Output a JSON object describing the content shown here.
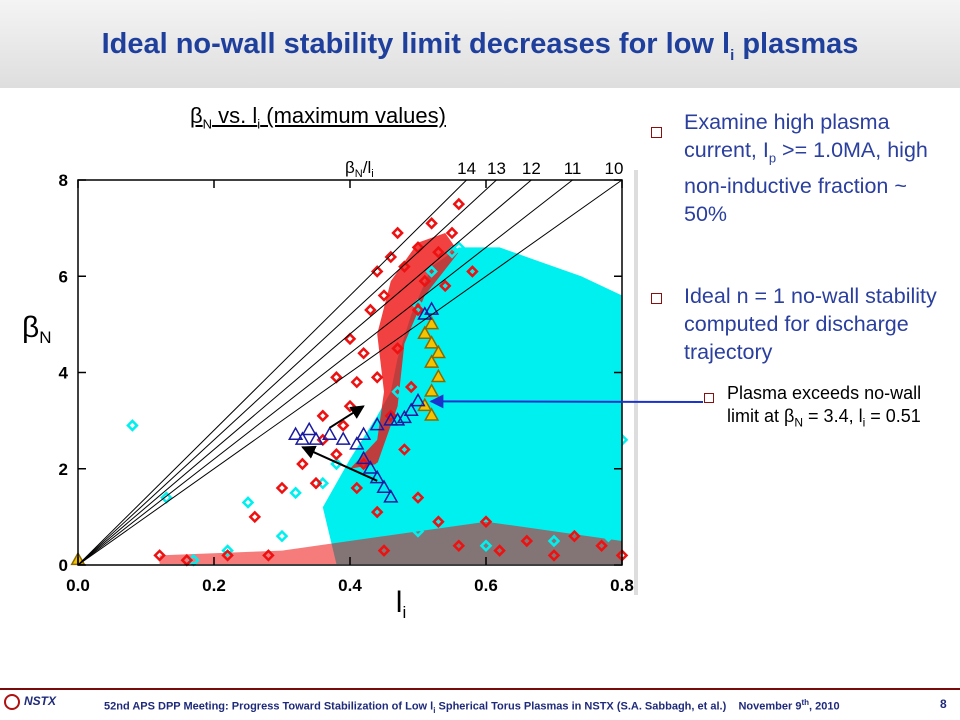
{
  "slide": {
    "title": "Ideal no-wall stability limit decreases for low l",
    "title_sub": "i",
    "title_tail": " plasmas"
  },
  "chart_title": {
    "beta": "β",
    "sub": "N",
    "mid": " vs. l",
    "li_sub": "i",
    "tail": " (maximum values)"
  },
  "bullets": [
    {
      "text": "Examine high plasma current, I",
      "sub": "p",
      "tail": " >= 1.0MA, high non-inductive fraction ~ 50%"
    },
    {
      "text": "Ideal n = 1 no-wall stability computed for discharge trajectory"
    }
  ],
  "sub_bullet": {
    "text1": "Plasma exceeds no-wall limit at ",
    "beta": "β",
    "sub": "N",
    "text2": " = 3.4, l",
    "li_sub": "i",
    "text3": " = 0.51"
  },
  "footer": {
    "logo": "NSTX",
    "text": "52nd APS DPP Meeting: Progress Toward Stabilization of Low l",
    "text_sub": "i",
    "text_tail": " Spherical Torus Plasmas in NSTX (S.A. Sabbagh, et al.)",
    "date": "November 9",
    "date_sup": "th",
    "date_tail": ", 2010",
    "page": "8"
  },
  "colors": {
    "title": "#1f3f9c",
    "bullet_text": "#2a3f9e",
    "cyan": "#00f0f0",
    "red": "#ee1111",
    "yellow": "#f5c400",
    "navy": "#1a1aa0",
    "arrow_blue": "#1a33cc"
  },
  "chart_data": {
    "type": "scatter",
    "xlabel": "l",
    "xlabel_sub": "i",
    "ylabel": "β",
    "ylabel_sub": "N",
    "xlim": [
      0.0,
      0.8
    ],
    "ylim": [
      0,
      8
    ],
    "xticks": [
      "0.0",
      "0.2",
      "0.4",
      "0.6",
      "0.8"
    ],
    "yticks": [
      "0",
      "2",
      "4",
      "6",
      "8"
    ],
    "limit_lines_label": "β",
    "limit_lines_label_sub": "N",
    "limit_lines_label_tail": "/l",
    "limit_lines_label_tail_sub": "i",
    "limit_lines": [
      14,
      13,
      12,
      11,
      10
    ],
    "series": [
      {
        "marker": "diamond",
        "color": "cyan",
        "points": [
          [
            0.08,
            2.9
          ],
          [
            0.13,
            1.4
          ],
          [
            0.17,
            0.1
          ],
          [
            0.22,
            0.3
          ],
          [
            0.25,
            1.3
          ],
          [
            0.3,
            0.6
          ],
          [
            0.32,
            1.5
          ],
          [
            0.36,
            1.7
          ],
          [
            0.38,
            2.1
          ],
          [
            0.41,
            1.1
          ],
          [
            0.44,
            2.0
          ],
          [
            0.46,
            2.5
          ],
          [
            0.47,
            3.6
          ],
          [
            0.49,
            4.6
          ],
          [
            0.5,
            5.4
          ],
          [
            0.52,
            6.1
          ],
          [
            0.55,
            6.5
          ],
          [
            0.56,
            6.6
          ],
          [
            0.58,
            6.2
          ],
          [
            0.62,
            6.3
          ],
          [
            0.6,
            5.1
          ],
          [
            0.65,
            4.8
          ],
          [
            0.7,
            5.2
          ],
          [
            0.74,
            4.6
          ],
          [
            0.78,
            4.1
          ],
          [
            0.62,
            3.2
          ],
          [
            0.66,
            2.6
          ],
          [
            0.72,
            2.1
          ],
          [
            0.76,
            1.6
          ],
          [
            0.55,
            1.4
          ],
          [
            0.5,
            0.7
          ],
          [
            0.6,
            0.4
          ],
          [
            0.7,
            0.5
          ],
          [
            0.78,
            0.6
          ],
          [
            0.53,
            2.4
          ],
          [
            0.57,
            3.7
          ],
          [
            0.68,
            3.9
          ],
          [
            0.75,
            3.0
          ],
          [
            0.8,
            2.6
          ]
        ]
      },
      {
        "marker": "diamond",
        "color": "red",
        "points": [
          [
            0.12,
            0.2
          ],
          [
            0.16,
            0.1
          ],
          [
            0.22,
            0.2
          ],
          [
            0.28,
            0.2
          ],
          [
            0.26,
            1.0
          ],
          [
            0.3,
            1.6
          ],
          [
            0.33,
            2.1
          ],
          [
            0.35,
            1.7
          ],
          [
            0.36,
            2.6
          ],
          [
            0.38,
            2.3
          ],
          [
            0.39,
            2.9
          ],
          [
            0.4,
            3.3
          ],
          [
            0.41,
            3.8
          ],
          [
            0.42,
            4.4
          ],
          [
            0.43,
            5.3
          ],
          [
            0.44,
            6.1
          ],
          [
            0.46,
            6.4
          ],
          [
            0.47,
            6.9
          ],
          [
            0.48,
            6.2
          ],
          [
            0.5,
            6.6
          ],
          [
            0.51,
            5.9
          ],
          [
            0.52,
            7.1
          ],
          [
            0.53,
            6.5
          ],
          [
            0.55,
            6.9
          ],
          [
            0.56,
            7.5
          ],
          [
            0.58,
            6.1
          ],
          [
            0.5,
            5.3
          ],
          [
            0.47,
            4.5
          ],
          [
            0.45,
            5.6
          ],
          [
            0.44,
            3.9
          ],
          [
            0.46,
            3.1
          ],
          [
            0.48,
            2.4
          ],
          [
            0.41,
            1.6
          ],
          [
            0.44,
            1.1
          ],
          [
            0.45,
            0.3
          ],
          [
            0.5,
            1.4
          ],
          [
            0.53,
            0.9
          ],
          [
            0.56,
            0.4
          ],
          [
            0.6,
            0.9
          ],
          [
            0.62,
            0.3
          ],
          [
            0.66,
            0.5
          ],
          [
            0.7,
            0.2
          ],
          [
            0.73,
            0.6
          ],
          [
            0.77,
            0.4
          ],
          [
            0.8,
            0.2
          ],
          [
            0.36,
            3.1
          ],
          [
            0.38,
            3.9
          ],
          [
            0.4,
            4.7
          ],
          [
            0.42,
            2.1
          ],
          [
            0.49,
            3.7
          ],
          [
            0.54,
            5.8
          ]
        ]
      },
      {
        "marker": "triangle",
        "color": "yellow",
        "points": [
          [
            0.0,
            0.1
          ],
          [
            0.51,
            4.8
          ],
          [
            0.52,
            5.0
          ],
          [
            0.52,
            4.6
          ],
          [
            0.53,
            4.4
          ],
          [
            0.52,
            4.2
          ],
          [
            0.53,
            3.9
          ],
          [
            0.52,
            3.6
          ],
          [
            0.51,
            3.3
          ],
          [
            0.52,
            3.1
          ]
        ]
      },
      {
        "marker": "triangle",
        "color": "navy",
        "points": [
          [
            0.51,
            5.2
          ],
          [
            0.52,
            5.3
          ],
          [
            0.5,
            3.4
          ],
          [
            0.49,
            3.2
          ],
          [
            0.48,
            3.05
          ],
          [
            0.47,
            3.0
          ],
          [
            0.46,
            3.0
          ],
          [
            0.44,
            2.9
          ],
          [
            0.42,
            2.7
          ],
          [
            0.41,
            2.5
          ],
          [
            0.42,
            2.2
          ],
          [
            0.43,
            2.0
          ],
          [
            0.44,
            1.8
          ],
          [
            0.45,
            1.6
          ],
          [
            0.46,
            1.4
          ],
          [
            0.39,
            2.6
          ],
          [
            0.37,
            2.7
          ],
          [
            0.35,
            2.6
          ],
          [
            0.33,
            2.6
          ],
          [
            0.32,
            2.7
          ],
          [
            0.34,
            2.8
          ]
        ]
      }
    ],
    "arrows": [
      {
        "from": [
          0.44,
          1.75
        ],
        "to": [
          0.33,
          2.45
        ],
        "color": "black"
      },
      {
        "from": [
          0.37,
          2.85
        ],
        "to": [
          0.42,
          3.3
        ],
        "color": "black"
      }
    ],
    "callout_arrow": {
      "from_label": "sub_bullet",
      "to": [
        0.51,
        3.4
      ],
      "color": "blue"
    }
  }
}
